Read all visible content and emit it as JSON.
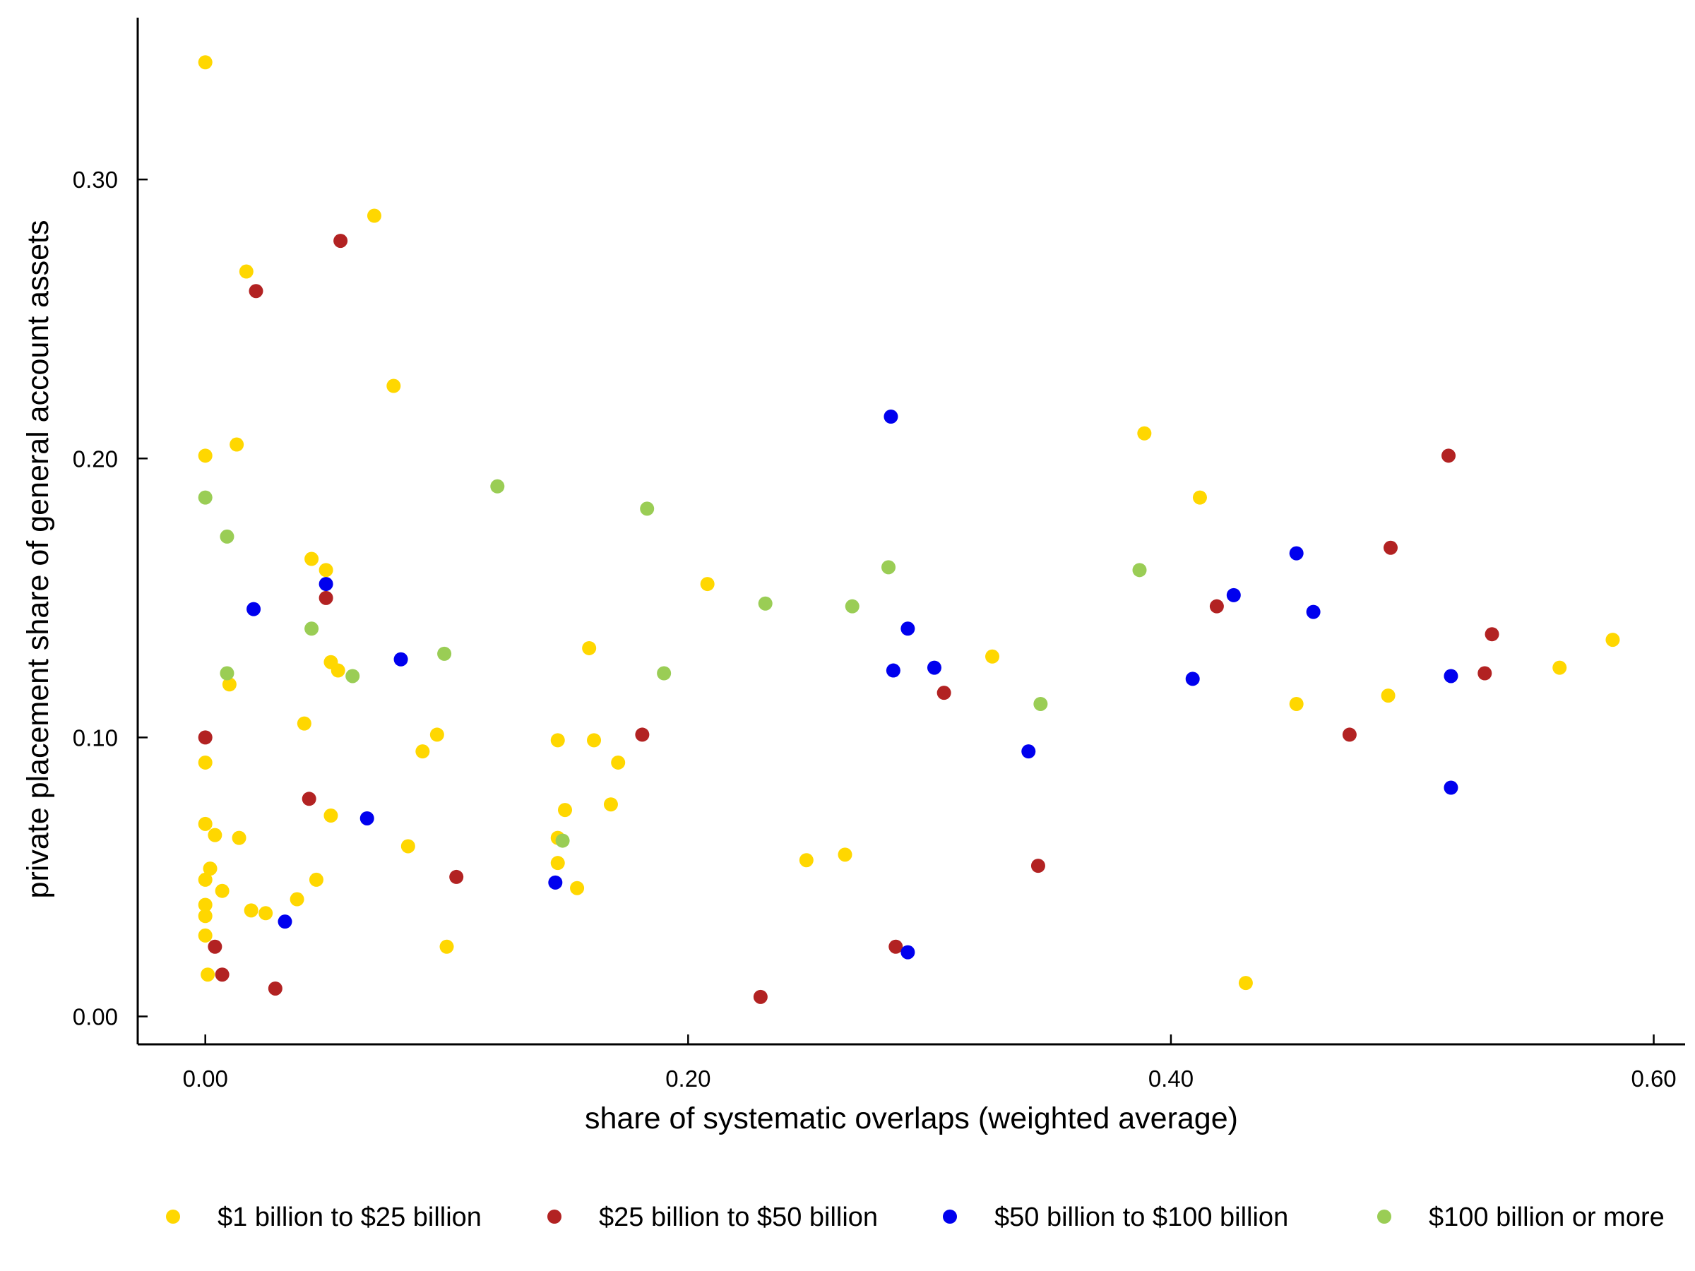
{
  "chart_data": {
    "type": "scatter",
    "title": "",
    "xlabel": "share of systematic overlaps (weighted average)",
    "ylabel": "private placement share of general account assets",
    "xlim": [
      -0.028,
      0.613
    ],
    "ylim": [
      -0.01,
      0.358
    ],
    "xticks": [
      0.0,
      0.2,
      0.4,
      0.6
    ],
    "xtick_labels": [
      "0.00",
      "0.20",
      "0.40",
      "0.60"
    ],
    "yticks": [
      0.0,
      0.1,
      0.2,
      0.3
    ],
    "ytick_labels": [
      "0.00",
      "0.10",
      "0.20",
      "0.30"
    ],
    "grid": false,
    "legend_position": "bottom",
    "series": [
      {
        "name": "$1 billion to $25 billion",
        "color": "#FFD700",
        "points": [
          [
            0.0,
            0.342
          ],
          [
            0.07,
            0.287
          ],
          [
            0.017,
            0.267
          ],
          [
            0.078,
            0.226
          ],
          [
            0.0,
            0.201
          ],
          [
            0.013,
            0.205
          ],
          [
            0.044,
            0.164
          ],
          [
            0.05,
            0.16
          ],
          [
            0.052,
            0.127
          ],
          [
            0.055,
            0.124
          ],
          [
            0.01,
            0.119
          ],
          [
            0.041,
            0.105
          ],
          [
            0.0,
            0.091
          ],
          [
            0.0,
            0.069
          ],
          [
            0.004,
            0.065
          ],
          [
            0.014,
            0.064
          ],
          [
            0.002,
            0.053
          ],
          [
            0.0,
            0.049
          ],
          [
            0.007,
            0.045
          ],
          [
            0.0,
            0.04
          ],
          [
            0.0,
            0.036
          ],
          [
            0.019,
            0.038
          ],
          [
            0.025,
            0.037
          ],
          [
            0.038,
            0.042
          ],
          [
            0.046,
            0.049
          ],
          [
            0.052,
            0.072
          ],
          [
            0.084,
            0.061
          ],
          [
            0.09,
            0.095
          ],
          [
            0.096,
            0.101
          ],
          [
            0.1,
            0.025
          ],
          [
            0.0,
            0.029
          ],
          [
            0.001,
            0.015
          ],
          [
            0.146,
            0.099
          ],
          [
            0.159,
            0.132
          ],
          [
            0.161,
            0.099
          ],
          [
            0.171,
            0.091
          ],
          [
            0.168,
            0.076
          ],
          [
            0.149,
            0.074
          ],
          [
            0.146,
            0.064
          ],
          [
            0.146,
            0.055
          ],
          [
            0.154,
            0.046
          ],
          [
            0.208,
            0.155
          ],
          [
            0.249,
            0.056
          ],
          [
            0.265,
            0.058
          ],
          [
            0.326,
            0.129
          ],
          [
            0.389,
            0.209
          ],
          [
            0.412,
            0.186
          ],
          [
            0.431,
            0.012
          ],
          [
            0.452,
            0.112
          ],
          [
            0.49,
            0.115
          ],
          [
            0.561,
            0.125
          ],
          [
            0.583,
            0.135
          ]
        ]
      },
      {
        "name": "$25 billion to $50 billion",
        "color": "#B22222",
        "points": [
          [
            0.056,
            0.278
          ],
          [
            0.021,
            0.26
          ],
          [
            0.05,
            0.15
          ],
          [
            0.0,
            0.1
          ],
          [
            0.043,
            0.078
          ],
          [
            0.004,
            0.025
          ],
          [
            0.007,
            0.015
          ],
          [
            0.029,
            0.01
          ],
          [
            0.104,
            0.05
          ],
          [
            0.181,
            0.101
          ],
          [
            0.23,
            0.007
          ],
          [
            0.286,
            0.025
          ],
          [
            0.306,
            0.116
          ],
          [
            0.345,
            0.054
          ],
          [
            0.419,
            0.147
          ],
          [
            0.474,
            0.101
          ],
          [
            0.491,
            0.168
          ],
          [
            0.515,
            0.201
          ],
          [
            0.53,
            0.123
          ],
          [
            0.533,
            0.137
          ]
        ]
      },
      {
        "name": "$50 billion to $100 billion",
        "color": "#0000EE",
        "points": [
          [
            0.02,
            0.146
          ],
          [
            0.05,
            0.155
          ],
          [
            0.081,
            0.128
          ],
          [
            0.067,
            0.071
          ],
          [
            0.033,
            0.034
          ],
          [
            0.145,
            0.048
          ],
          [
            0.284,
            0.215
          ],
          [
            0.291,
            0.139
          ],
          [
            0.285,
            0.124
          ],
          [
            0.302,
            0.125
          ],
          [
            0.341,
            0.095
          ],
          [
            0.291,
            0.023
          ],
          [
            0.409,
            0.121
          ],
          [
            0.426,
            0.151
          ],
          [
            0.452,
            0.166
          ],
          [
            0.459,
            0.145
          ],
          [
            0.516,
            0.122
          ],
          [
            0.516,
            0.082
          ]
        ]
      },
      {
        "name": "$100 billion or more",
        "color": "#9ACD55",
        "points": [
          [
            0.0,
            0.186
          ],
          [
            0.009,
            0.172
          ],
          [
            0.009,
            0.123
          ],
          [
            0.044,
            0.139
          ],
          [
            0.061,
            0.122
          ],
          [
            0.099,
            0.13
          ],
          [
            0.121,
            0.19
          ],
          [
            0.183,
            0.182
          ],
          [
            0.19,
            0.123
          ],
          [
            0.148,
            0.063
          ],
          [
            0.232,
            0.148
          ],
          [
            0.268,
            0.147
          ],
          [
            0.283,
            0.161
          ],
          [
            0.346,
            0.112
          ],
          [
            0.387,
            0.16
          ]
        ]
      }
    ]
  }
}
